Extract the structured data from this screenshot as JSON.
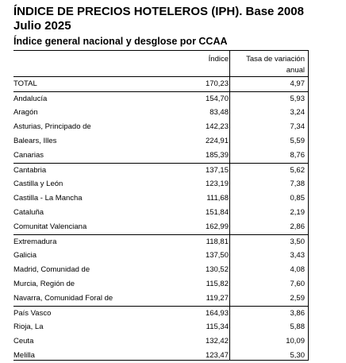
{
  "title": {
    "line1": "ÍNDICE DE PRECIOS HOTELEROS (IPH). Base 2008",
    "line2": "Julio 2025"
  },
  "subtitle": "Índice general nacional y desglose por CCAA",
  "columns": {
    "indice": "Índice",
    "tasa_line1": "Tasa de variación",
    "tasa_line2": "anual"
  },
  "rows": [
    {
      "name": "TOTAL",
      "indice": "170,23",
      "tasa": "4,97",
      "sep": false
    },
    {
      "name": "Andalucía",
      "indice": "154,70",
      "tasa": "5,93",
      "sep": true
    },
    {
      "name": "Aragón",
      "indice": "83,48",
      "tasa": "3,24",
      "sep": false
    },
    {
      "name": "Asturias, Principado de",
      "indice": "142,23",
      "tasa": "7,34",
      "sep": false
    },
    {
      "name": "Balears, Illes",
      "indice": "224,91",
      "tasa": "5,59",
      "sep": false
    },
    {
      "name": "Canarias",
      "indice": "185,39",
      "tasa": "8,76",
      "sep": false
    },
    {
      "name": "Cantabria",
      "indice": "137,15",
      "tasa": "5,62",
      "sep": true
    },
    {
      "name": "Castilla y León",
      "indice": "123,19",
      "tasa": "7,38",
      "sep": false
    },
    {
      "name": "Castilla - La Mancha",
      "indice": "111,68",
      "tasa": "0,85",
      "sep": false
    },
    {
      "name": "Cataluña",
      "indice": "151,84",
      "tasa": "2,19",
      "sep": false
    },
    {
      "name": "Comunitat Valenciana",
      "indice": "162,99",
      "tasa": "2,86",
      "sep": false
    },
    {
      "name": "Extremadura",
      "indice": "118,81",
      "tasa": "3,50",
      "sep": true
    },
    {
      "name": "Galicia",
      "indice": "137,50",
      "tasa": "3,43",
      "sep": false
    },
    {
      "name": "Madrid, Comunidad de",
      "indice": "130,52",
      "tasa": "4,08",
      "sep": false
    },
    {
      "name": "Murcia, Región de",
      "indice": "115,82",
      "tasa": "7,60",
      "sep": false
    },
    {
      "name": "Navarra, Comunidad Foral de",
      "indice": "119,27",
      "tasa": "2,59",
      "sep": false
    },
    {
      "name": "País Vasco",
      "indice": "164,93",
      "tasa": "3,86",
      "sep": true
    },
    {
      "name": "Rioja, La",
      "indice": "115,34",
      "tasa": "5,88",
      "sep": false
    },
    {
      "name": "Ceuta",
      "indice": "132,42",
      "tasa": "10,09",
      "sep": false
    },
    {
      "name": "Melilla",
      "indice": "123,47",
      "tasa": "5,30",
      "sep": false
    }
  ]
}
